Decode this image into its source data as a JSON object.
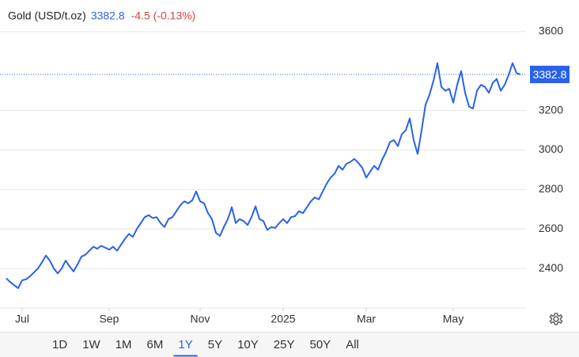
{
  "chart_data": {
    "type": "line",
    "title": "Gold (USD/t.oz)",
    "price": 3382.8,
    "change_label": "-4.5 (-0.13%)",
    "series": [
      {
        "name": "Gold",
        "color": "#2962e8",
        "values": [
          2350,
          2330,
          2315,
          2300,
          2340,
          2345,
          2360,
          2380,
          2400,
          2430,
          2465,
          2440,
          2400,
          2375,
          2400,
          2440,
          2410,
          2385,
          2420,
          2460,
          2470,
          2490,
          2510,
          2500,
          2515,
          2505,
          2495,
          2510,
          2490,
          2520,
          2550,
          2575,
          2560,
          2600,
          2630,
          2660,
          2670,
          2655,
          2660,
          2630,
          2610,
          2650,
          2660,
          2690,
          2720,
          2740,
          2730,
          2745,
          2790,
          2740,
          2730,
          2680,
          2650,
          2580,
          2565,
          2610,
          2650,
          2710,
          2630,
          2650,
          2640,
          2620,
          2660,
          2715,
          2650,
          2640,
          2595,
          2610,
          2605,
          2630,
          2650,
          2630,
          2660,
          2665,
          2690,
          2680,
          2710,
          2740,
          2760,
          2750,
          2790,
          2830,
          2860,
          2880,
          2920,
          2900,
          2930,
          2940,
          2955,
          2935,
          2910,
          2860,
          2890,
          2920,
          2900,
          2950,
          2990,
          3040,
          3050,
          3020,
          3080,
          3100,
          3160,
          3050,
          2980,
          3100,
          3230,
          3280,
          3350,
          3440,
          3320,
          3300,
          3310,
          3240,
          3330,
          3400,
          3290,
          3220,
          3210,
          3300,
          3330,
          3320,
          3290,
          3340,
          3360,
          3300,
          3330,
          3380,
          3440,
          3390,
          3382.8
        ]
      }
    ],
    "xlim": [
      0,
      130
    ],
    "xticks": [
      {
        "value": 4,
        "label": "Jul"
      },
      {
        "value": 26,
        "label": "Sep"
      },
      {
        "value": 49,
        "label": "Nov"
      },
      {
        "value": 70,
        "label": "2025"
      },
      {
        "value": 91,
        "label": "Mar"
      },
      {
        "value": 113,
        "label": "May"
      }
    ],
    "ylim": [
      2200,
      3760
    ],
    "yticks": [
      2400,
      2600,
      2800,
      3000,
      3200,
      3600
    ],
    "grid": true,
    "range_buttons": [
      "1D",
      "1W",
      "1M",
      "6M",
      "1Y",
      "5Y",
      "10Y",
      "25Y",
      "50Y",
      "All"
    ],
    "selected_range": "1Y"
  }
}
